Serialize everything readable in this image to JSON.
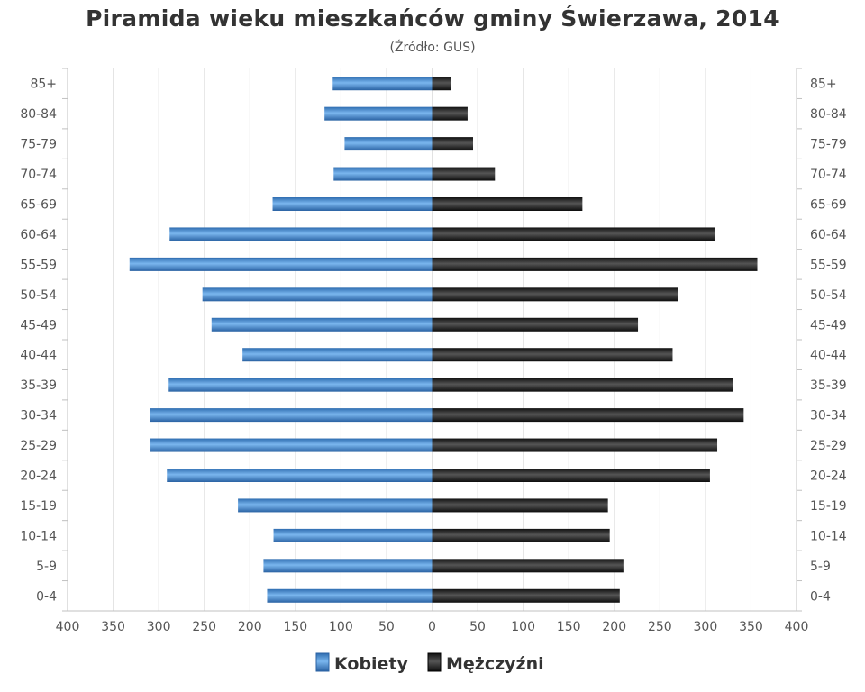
{
  "chart_data": {
    "type": "bar",
    "orientation": "horizontal-population-pyramid",
    "title": "Piramida wieku mieszkańców gminy Świerzawa, 2014",
    "subtitle": "(Źródło: GUS)",
    "categories": [
      "85+",
      "80-84",
      "75-79",
      "70-74",
      "65-69",
      "60-64",
      "55-59",
      "50-54",
      "45-49",
      "40-44",
      "35-39",
      "30-34",
      "25-29",
      "20-24",
      "15-19",
      "10-14",
      "5-9",
      "0-4"
    ],
    "series": [
      {
        "name": "Kobiety",
        "side": "left",
        "color": "#4a90d9",
        "values": [
          109,
          118,
          96,
          108,
          175,
          288,
          332,
          252,
          242,
          208,
          289,
          310,
          309,
          291,
          213,
          174,
          185,
          181
        ]
      },
      {
        "name": "Mężczyźni",
        "side": "right",
        "color": "#222222",
        "values": [
          21,
          39,
          45,
          69,
          165,
          310,
          357,
          270,
          226,
          264,
          330,
          342,
          313,
          305,
          193,
          195,
          210,
          206
        ]
      }
    ],
    "x_ticks": [
      "400",
      "350",
      "300",
      "250",
      "200",
      "150",
      "100",
      "50",
      "0",
      "50",
      "100",
      "150",
      "200",
      "250",
      "300",
      "350",
      "400"
    ],
    "xlim": [
      -400,
      400
    ],
    "grid": true,
    "legend_position": "bottom-center"
  }
}
